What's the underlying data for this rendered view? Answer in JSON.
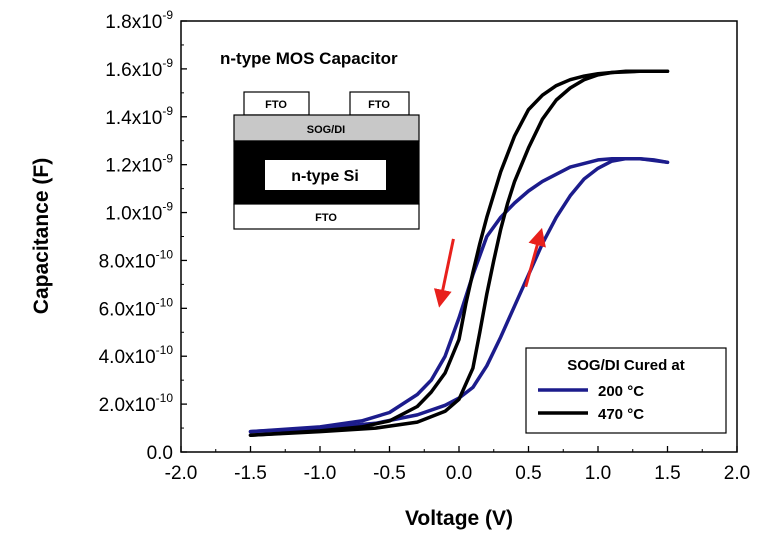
{
  "chart_data": {
    "type": "line",
    "title": "n-type MOS Capacitor",
    "xlabel": "Voltage (V)",
    "ylabel": "Capacitance (F)",
    "xlim": [
      -2.0,
      2.0
    ],
    "ylim": [
      0,
      1.8e-09
    ],
    "x_ticks": [
      -2.0,
      -1.5,
      -1.0,
      -0.5,
      0.0,
      0.5,
      1.0,
      1.5,
      2.0
    ],
    "x_tick_labels": [
      "-2.0",
      "-1.5",
      "-1.0",
      "-0.5",
      "0.0",
      "0.5",
      "1.0",
      "1.5",
      "2.0"
    ],
    "y_ticks": [
      0,
      2e-10,
      4e-10,
      6e-10,
      8e-10,
      1e-09,
      1.2e-09,
      1.4e-09,
      1.6e-09,
      1.8e-09
    ],
    "y_tick_labels": [
      {
        "mantissa": "0.0",
        "exp": ""
      },
      {
        "mantissa": "2.0x10",
        "exp": "-10"
      },
      {
        "mantissa": "4.0x10",
        "exp": "-10"
      },
      {
        "mantissa": "6.0x10",
        "exp": "-10"
      },
      {
        "mantissa": "8.0x10",
        "exp": "-10"
      },
      {
        "mantissa": "1.0x10",
        "exp": "-9"
      },
      {
        "mantissa": "1.2x10",
        "exp": "-9"
      },
      {
        "mantissa": "1.4x10",
        "exp": "-9"
      },
      {
        "mantissa": "1.6x10",
        "exp": "-9"
      },
      {
        "mantissa": "1.8x10",
        "exp": "-9"
      }
    ],
    "legend": {
      "title": "SOG/DI Cured at",
      "position": "bottom-right"
    },
    "series": [
      {
        "name": "200 °C",
        "color": "#1c1c8c",
        "forward": {
          "x": [
            -1.5,
            -1.0,
            -0.6,
            -0.3,
            -0.1,
            0.0,
            0.1,
            0.2,
            0.3,
            0.4,
            0.5,
            0.6,
            0.7,
            0.8,
            0.9,
            1.0,
            1.1,
            1.2,
            1.3,
            1.4,
            1.5
          ],
          "y": [
            8.5e-11,
            1e-10,
            1.2e-10,
            1.55e-10,
            1.95e-10,
            2.25e-10,
            2.7e-10,
            3.6e-10,
            4.8e-10,
            6.1e-10,
            7.4e-10,
            8.7e-10,
            9.8e-10,
            1.07e-09,
            1.14e-09,
            1.185e-09,
            1.215e-09,
            1.225e-09,
            1.225e-09,
            1.22e-09,
            1.21e-09
          ]
        },
        "reverse": {
          "x": [
            1.5,
            1.3,
            1.1,
            1.0,
            0.8,
            0.6,
            0.5,
            0.4,
            0.3,
            0.2,
            0.1,
            0.0,
            -0.1,
            -0.2,
            -0.3,
            -0.5,
            -0.7,
            -1.0,
            -1.5
          ],
          "y": [
            1.21e-09,
            1.225e-09,
            1.225e-09,
            1.22e-09,
            1.19e-09,
            1.13e-09,
            1.09e-09,
            1.04e-09,
            9.8e-10,
            9e-10,
            7.4e-10,
            5.6e-10,
            4e-10,
            3e-10,
            2.4e-10,
            1.65e-10,
            1.3e-10,
            1.05e-10,
            8.5e-11
          ]
        }
      },
      {
        "name": "470 °C",
        "color": "#000000",
        "forward": {
          "x": [
            -1.5,
            -1.0,
            -0.6,
            -0.3,
            -0.1,
            0.0,
            0.1,
            0.15,
            0.2,
            0.25,
            0.3,
            0.35,
            0.4,
            0.5,
            0.6,
            0.7,
            0.8,
            0.9,
            1.0,
            1.1,
            1.2,
            1.3,
            1.4,
            1.5
          ],
          "y": [
            7e-11,
            8.5e-11,
            1e-10,
            1.25e-10,
            1.7e-10,
            2.2e-10,
            3.5e-10,
            5e-10,
            6.6e-10,
            8e-10,
            9.3e-10,
            1.04e-09,
            1.13e-09,
            1.27e-09,
            1.39e-09,
            1.47e-09,
            1.52e-09,
            1.555e-09,
            1.575e-09,
            1.585e-09,
            1.59e-09,
            1.59e-09,
            1.59e-09,
            1.59e-09
          ]
        },
        "reverse": {
          "x": [
            1.5,
            1.3,
            1.1,
            1.0,
            0.9,
            0.8,
            0.7,
            0.6,
            0.5,
            0.4,
            0.3,
            0.2,
            0.15,
            0.1,
            0.05,
            0.0,
            -0.1,
            -0.2,
            -0.3,
            -0.5,
            -0.7,
            -1.0,
            -1.5
          ],
          "y": [
            1.59e-09,
            1.59e-09,
            1.585e-09,
            1.58e-09,
            1.57e-09,
            1.555e-09,
            1.53e-09,
            1.49e-09,
            1.43e-09,
            1.32e-09,
            1.17e-09,
            9.8e-10,
            8.7e-10,
            7.5e-10,
            6.2e-10,
            4.7e-10,
            3.3e-10,
            2.5e-10,
            1.9e-10,
            1.3e-10,
            1.05e-10,
            8.8e-11,
            7e-11
          ]
        }
      }
    ],
    "annotations": [
      {
        "type": "arrow",
        "direction": "down",
        "color": "#e8201c",
        "x_start": -0.04,
        "y_start": 8.9e-10,
        "x_end": -0.13,
        "y_end": 6.4e-10
      },
      {
        "type": "arrow",
        "direction": "up",
        "color": "#e8201c",
        "x_start": 0.48,
        "y_start": 6.9e-10,
        "x_end": 0.58,
        "y_end": 9e-10
      }
    ],
    "inset": {
      "top_contact_label": "FTO",
      "oxide_label": "SOG/DI",
      "substrate_label": "n-type Si",
      "bottom_contact_label": "FTO"
    }
  }
}
